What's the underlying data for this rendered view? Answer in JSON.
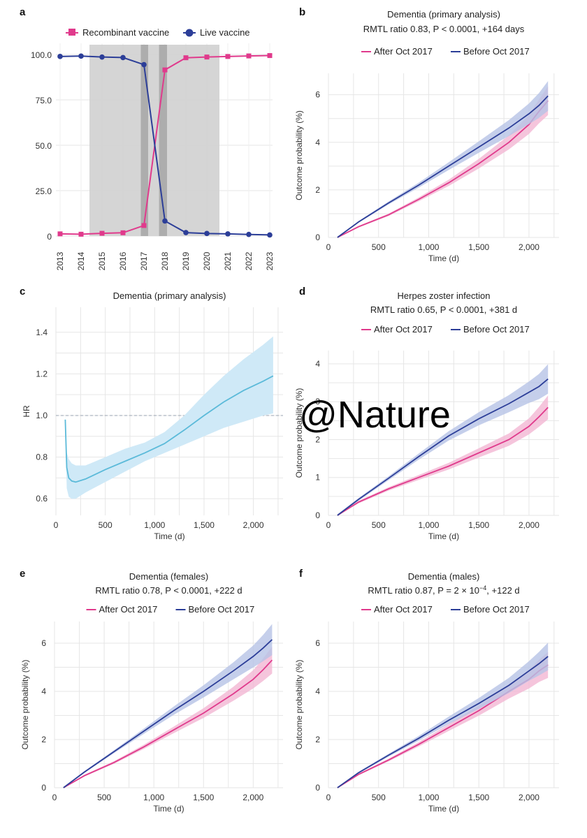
{
  "watermark": "@Nature",
  "colors": {
    "pink": "#e03a8c",
    "blue": "#2c3e98",
    "pinkBand": "#f3b6d3",
    "blueBand": "#b7c3e6",
    "hr": "#5bbad9",
    "hrBand": "#cfe9f7",
    "shade": "#d0d0d0",
    "shadeDark": "#a9a9a9",
    "grid": "#e6e6e6"
  },
  "chart_data": [
    {
      "panel": "a",
      "type": "line",
      "title": "",
      "xlabel": "",
      "ylabel": "",
      "x": [
        "2013",
        "2014",
        "2015",
        "2016",
        "2017",
        "2018",
        "2019",
        "2020",
        "2021",
        "2022",
        "2023"
      ],
      "yticks": [
        "0",
        "25.0",
        "50.0",
        "75.0",
        "100.0"
      ],
      "ylim": [
        0,
        100
      ],
      "series": [
        {
          "name": "Recombinant vaccine",
          "color": "pink",
          "marker": "square",
          "values": [
            1.2,
            1.0,
            1.5,
            1.8,
            5.8,
            91.5,
            98.2,
            98.6,
            98.9,
            99.2,
            99.4
          ]
        },
        {
          "name": "Live vaccine",
          "color": "blue",
          "marker": "circle",
          "values": [
            98.9,
            99.1,
            98.6,
            98.3,
            94.4,
            8.3,
            1.9,
            1.4,
            1.2,
            0.9,
            0.6
          ]
        }
      ],
      "shaded_regions": [
        {
          "from": 2014.4,
          "to": 2020.6,
          "shade": "light"
        },
        {
          "from": 2016.85,
          "to": 2017.2,
          "shade": "dark"
        },
        {
          "from": 2017.72,
          "to": 2018.1,
          "shade": "dark"
        }
      ],
      "legend_position": "top"
    },
    {
      "panel": "b",
      "type": "line",
      "title": "Dementia (primary analysis)",
      "subtitle": "RMTL ratio 0.83, P < 0.0001, +164 days",
      "xlabel": "Time (d)",
      "ylabel": "Outcome probability (%)",
      "xlim": [
        0,
        2300
      ],
      "ylim": [
        0,
        6.9
      ],
      "xticks": [
        "0",
        "500",
        "1,000",
        "1,500",
        "2,000"
      ],
      "xtick_values": [
        0,
        500,
        1000,
        1500,
        2000
      ],
      "yticks": [
        "0",
        "2",
        "4",
        "6"
      ],
      "ytick_values": [
        0,
        2,
        4,
        6
      ],
      "series": [
        {
          "name": "After Oct 2017",
          "color": "pink",
          "x": [
            90,
            300,
            600,
            900,
            1200,
            1500,
            1800,
            2000,
            2100,
            2190
          ],
          "values": [
            0,
            0.45,
            0.95,
            1.6,
            2.3,
            3.1,
            4.0,
            4.75,
            5.3,
            5.75
          ]
        },
        {
          "name": "Before Oct 2017",
          "color": "blue",
          "x": [
            90,
            300,
            600,
            900,
            1200,
            1500,
            1800,
            2000,
            2100,
            2190
          ],
          "values": [
            0,
            0.65,
            1.45,
            2.2,
            3.0,
            3.8,
            4.6,
            5.2,
            5.55,
            5.95
          ]
        }
      ],
      "legend_position": "top"
    },
    {
      "panel": "c",
      "type": "line",
      "title": "Dementia (primary analysis)",
      "xlabel": "Time (d)",
      "ylabel": "HR",
      "xlim": [
        0,
        2300
      ],
      "ylim": [
        0.52,
        1.52
      ],
      "xticks": [
        "0",
        "500",
        "1,000",
        "1,500",
        "2,000"
      ],
      "xtick_values": [
        0,
        500,
        1000,
        1500,
        2000
      ],
      "yticks": [
        "0.6",
        "0.8",
        "1.0",
        "1.2",
        "1.4"
      ],
      "ytick_values": [
        0.6,
        0.8,
        1.0,
        1.2,
        1.4
      ],
      "reference_line": 1.0,
      "series": [
        {
          "name": "",
          "color": "hr",
          "x": [
            95,
            110,
            130,
            160,
            200,
            300,
            500,
            700,
            900,
            1100,
            1300,
            1500,
            1700,
            1900,
            2100,
            2200
          ],
          "values": [
            0.98,
            0.75,
            0.7,
            0.685,
            0.68,
            0.695,
            0.74,
            0.78,
            0.82,
            0.865,
            0.93,
            1.0,
            1.065,
            1.12,
            1.165,
            1.19
          ],
          "lower": [
            0.96,
            0.65,
            0.61,
            0.6,
            0.6,
            0.63,
            0.68,
            0.73,
            0.78,
            0.82,
            0.86,
            0.9,
            0.94,
            0.97,
            1.0,
            1.01
          ],
          "upper": [
            1.0,
            0.82,
            0.79,
            0.77,
            0.76,
            0.76,
            0.8,
            0.84,
            0.87,
            0.92,
            1.0,
            1.1,
            1.19,
            1.27,
            1.34,
            1.38
          ]
        }
      ]
    },
    {
      "panel": "d",
      "type": "line",
      "title": "Herpes zoster infection",
      "subtitle": "RMTL ratio 0.65, P < 0.0001, +381 d",
      "xlabel": "Time (d)",
      "ylabel": "Outcome probability (%)",
      "xlim": [
        0,
        2300
      ],
      "ylim": [
        0,
        4.35
      ],
      "xticks": [
        "0",
        "500",
        "1,000",
        "1,500",
        "2,000"
      ],
      "xtick_values": [
        0,
        500,
        1000,
        1500,
        2000
      ],
      "yticks": [
        "0",
        "1",
        "2",
        "3",
        "4"
      ],
      "ytick_values": [
        0,
        1,
        2,
        3,
        4
      ],
      "series": [
        {
          "name": "After Oct 2017",
          "color": "pink",
          "x": [
            90,
            300,
            600,
            900,
            1200,
            1500,
            1800,
            2000,
            2100,
            2190
          ],
          "values": [
            0,
            0.35,
            0.7,
            1.0,
            1.3,
            1.65,
            2.0,
            2.35,
            2.6,
            2.85
          ]
        },
        {
          "name": "Before Oct 2017",
          "color": "blue",
          "x": [
            90,
            300,
            600,
            900,
            1200,
            1500,
            1800,
            2000,
            2100,
            2190
          ],
          "values": [
            0,
            0.42,
            0.98,
            1.55,
            2.1,
            2.55,
            2.95,
            3.25,
            3.4,
            3.6
          ]
        }
      ],
      "legend_position": "top"
    },
    {
      "panel": "e",
      "type": "line",
      "title": "Dementia (females)",
      "subtitle": "RMTL ratio 0.78, P < 0.0001, +222 d",
      "xlabel": "Time (d)",
      "ylabel": "Outcome probability (%)",
      "xlim": [
        0,
        2300
      ],
      "ylim": [
        0,
        6.9
      ],
      "xticks": [
        "0",
        "500",
        "1,000",
        "1,500",
        "2,000"
      ],
      "xtick_values": [
        0,
        500,
        1000,
        1500,
        2000
      ],
      "yticks": [
        "0",
        "2",
        "4",
        "6"
      ],
      "ytick_values": [
        0,
        2,
        4,
        6
      ],
      "series": [
        {
          "name": "After Oct 2017",
          "color": "pink",
          "x": [
            90,
            300,
            600,
            900,
            1200,
            1500,
            1800,
            2000,
            2100,
            2190
          ],
          "values": [
            0,
            0.5,
            1.05,
            1.7,
            2.4,
            3.1,
            3.9,
            4.5,
            4.9,
            5.3
          ]
        },
        {
          "name": "Before Oct 2017",
          "color": "blue",
          "x": [
            90,
            300,
            600,
            900,
            1200,
            1500,
            1800,
            2000,
            2100,
            2190
          ],
          "values": [
            0,
            0.65,
            1.5,
            2.35,
            3.2,
            4.0,
            4.85,
            5.45,
            5.8,
            6.15
          ]
        }
      ],
      "legend_position": "top"
    },
    {
      "panel": "f",
      "type": "line",
      "title": "Dementia (males)",
      "subtitle": "RMTL ratio 0.87, P = 2 × 10",
      "subtitle_exponent": "−4",
      "subtitle_tail": ", +122 d",
      "xlabel": "Time (d)",
      "ylabel": "Outcome probability (%)",
      "xlim": [
        0,
        2300
      ],
      "ylim": [
        0,
        6.9
      ],
      "xticks": [
        "0",
        "500",
        "1,000",
        "1,500",
        "2,000"
      ],
      "xtick_values": [
        0,
        500,
        1000,
        1500,
        2000
      ],
      "yticks": [
        "0",
        "2",
        "4",
        "6"
      ],
      "ytick_values": [
        0,
        2,
        4,
        6
      ],
      "series": [
        {
          "name": "After Oct 2017",
          "color": "pink",
          "x": [
            90,
            300,
            600,
            900,
            1200,
            1500,
            1800,
            2000,
            2100,
            2190
          ],
          "values": [
            0,
            0.55,
            1.15,
            1.8,
            2.5,
            3.2,
            4.0,
            4.5,
            4.85,
            5.1
          ]
        },
        {
          "name": "Before Oct 2017",
          "color": "blue",
          "x": [
            90,
            300,
            600,
            900,
            1200,
            1500,
            1800,
            2000,
            2100,
            2190
          ],
          "values": [
            0,
            0.62,
            1.35,
            2.05,
            2.8,
            3.5,
            4.25,
            4.85,
            5.15,
            5.45
          ]
        }
      ],
      "legend_position": "top"
    }
  ]
}
